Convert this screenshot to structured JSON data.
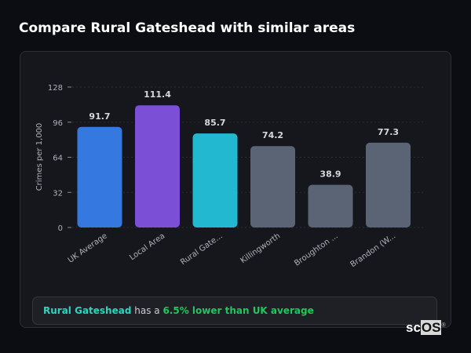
{
  "title": "Compare Rural Gateshead with similar areas",
  "chart_data": {
    "type": "bar",
    "categories": [
      "UK Average",
      "Local Area",
      "Rural Gate...",
      "Killingworth",
      "Broughton ...",
      "Brandon (W..."
    ],
    "values": [
      91.7,
      111.4,
      85.7,
      74.2,
      38.9,
      77.3
    ],
    "colors": [
      "#3578e0",
      "#7b4fd6",
      "#22b8d0",
      "#5b6475",
      "#5b6475",
      "#5b6475"
    ],
    "ylabel": "Crimes per 1,000",
    "yticks": [
      0,
      32,
      64,
      96,
      128
    ],
    "ylim": [
      0,
      128
    ],
    "grid": true
  },
  "summary": {
    "area": "Rural Gateshead",
    "middle": " has a ",
    "highlight": "6.5% lower than UK average"
  },
  "logo": {
    "text_a": "sc",
    "text_b": "OS",
    "mark": "®"
  }
}
